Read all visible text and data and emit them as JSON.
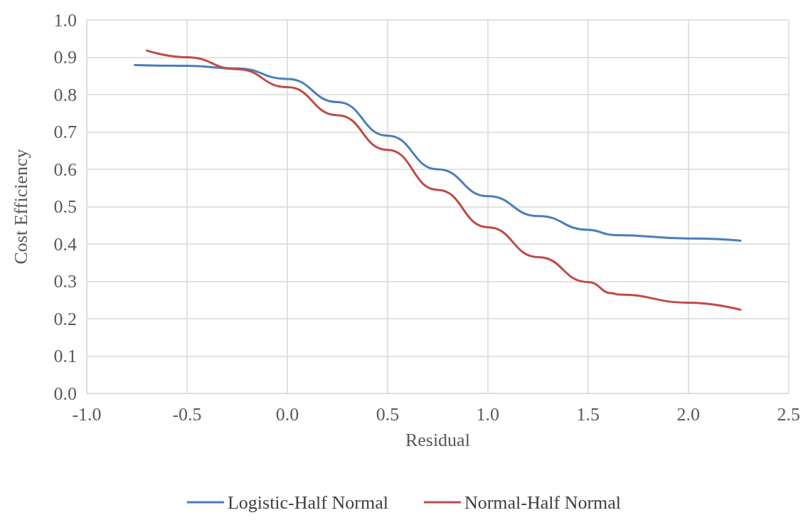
{
  "chart_data": {
    "type": "line",
    "xlabel": "Residual",
    "ylabel": "Cost Efficiency",
    "series": [
      {
        "name": "Logistic-Half Normal",
        "color": "#4a7ebb",
        "x": [
          -0.76,
          -0.5,
          -0.25,
          0,
          0.25,
          0.5,
          0.75,
          1.0,
          1.25,
          1.5,
          1.63,
          2.0,
          2.26
        ],
        "values": [
          0.879,
          0.877,
          0.87,
          0.842,
          0.78,
          0.69,
          0.6,
          0.528,
          0.475,
          0.438,
          0.424,
          0.415,
          0.409
        ]
      },
      {
        "name": "Normal-Half Normal",
        "color": "#be4b48",
        "x": [
          -0.7,
          -0.5,
          -0.25,
          0,
          0.25,
          0.5,
          0.75,
          1.0,
          1.25,
          1.5,
          1.62,
          1.65,
          2.0,
          2.26
        ],
        "values": [
          0.918,
          0.9,
          0.868,
          0.82,
          0.745,
          0.652,
          0.545,
          0.445,
          0.365,
          0.298,
          0.268,
          0.265,
          0.243,
          0.224
        ]
      }
    ],
    "xlim": [
      -1,
      2.5
    ],
    "xticks": [
      {
        "value": -1,
        "label": "-1.0"
      },
      {
        "value": -0.5,
        "label": "-0.5"
      },
      {
        "value": 0,
        "label": "0.0"
      },
      {
        "value": 0.5,
        "label": "0.5"
      },
      {
        "value": 1,
        "label": "1.0"
      },
      {
        "value": 1.5,
        "label": "1.5"
      },
      {
        "value": 2,
        "label": "2.0"
      },
      {
        "value": 2.5,
        "label": "2.5"
      }
    ],
    "ylim": [
      0,
      1
    ],
    "yticks": [
      {
        "value": 0,
        "label": "0.0"
      },
      {
        "value": 0.1,
        "label": "0.1"
      },
      {
        "value": 0.2,
        "label": "0.2"
      },
      {
        "value": 0.3,
        "label": "0.3"
      },
      {
        "value": 0.4,
        "label": "0.4"
      },
      {
        "value": 0.5,
        "label": "0.5"
      },
      {
        "value": 0.6,
        "label": "0.6"
      },
      {
        "value": 0.7,
        "label": "0.7"
      },
      {
        "value": 0.8,
        "label": "0.8"
      },
      {
        "value": 0.9,
        "label": "0.9"
      },
      {
        "value": 1,
        "label": "1.0"
      }
    ],
    "grid": true,
    "legend": "bottom",
    "marker": "none",
    "line_style": "solid"
  }
}
